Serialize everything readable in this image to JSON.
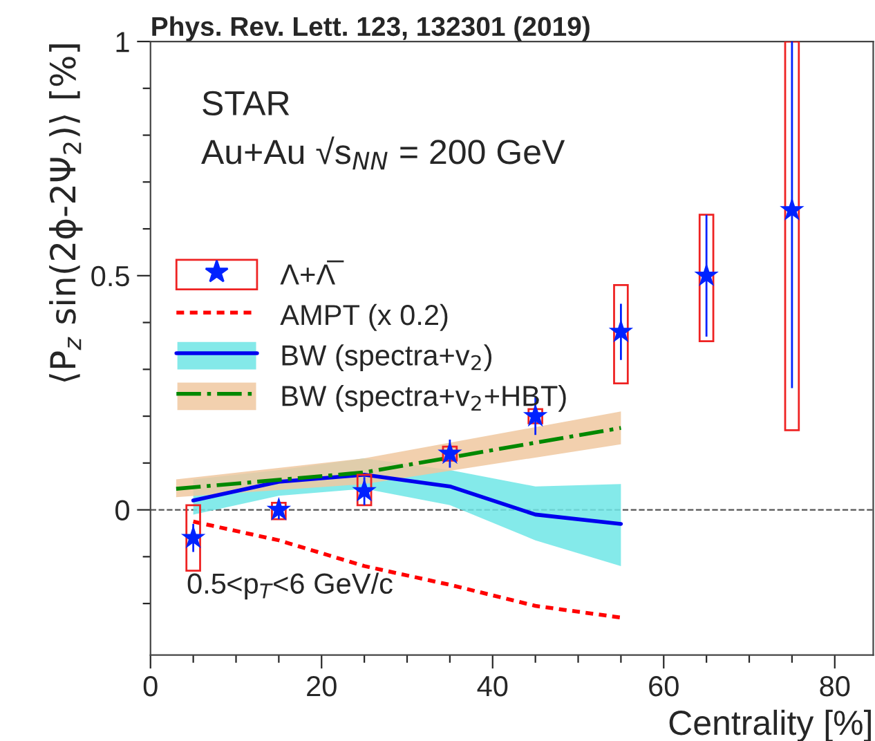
{
  "chart_data": {
    "type": "scatter",
    "title": "Phys. Rev. Lett. 123, 132301 (2019)",
    "xlabel": "Centrality [%]",
    "ylabel": "⟨P$_{z}$ sin(2ϕ-2Ψ$_{2}$)⟩ [%]",
    "annotations": [
      "STAR",
      "Au+Au √s$_{NN}$ = 200 GeV",
      "0.5<p$_{T}$<6 GeV/c"
    ],
    "xlim": [
      0,
      84.5
    ],
    "ylim": [
      -0.31,
      1
    ],
    "xticks": [
      0,
      {
        "value": 5,
        "label": null
      },
      {
        "value": 10,
        "label": null
      },
      {
        "value": 15,
        "label": null
      },
      20,
      {
        "value": 25,
        "label": null
      },
      {
        "value": 30,
        "label": null
      },
      {
        "value": 35,
        "label": null
      },
      40,
      {
        "value": 45,
        "label": null
      },
      {
        "value": 50,
        "label": null
      },
      {
        "value": 55,
        "label": null
      },
      60,
      {
        "value": 65,
        "label": null
      },
      {
        "value": 70,
        "label": null
      },
      {
        "value": 75,
        "label": null
      },
      80
    ],
    "yticks": [
      {
        "value": -0.2,
        "label": null
      },
      {
        "value": -0.1,
        "label": null
      },
      0,
      {
        "value": 0.1,
        "label": null
      },
      {
        "value": 0.2,
        "label": null
      },
      {
        "value": 0.3,
        "label": null
      },
      {
        "value": 0.4,
        "label": null
      },
      0.5,
      {
        "value": 0.6,
        "label": null
      },
      {
        "value": 0.7,
        "label": null
      },
      {
        "value": 0.8,
        "label": null
      },
      {
        "value": 0.9,
        "label": null
      },
      1
    ],
    "ref_lines": [
      {
        "axis": "y",
        "value": 0,
        "label": null,
        "color": "#555555",
        "line_style": "dashed"
      }
    ],
    "legend": "left",
    "grid": false,
    "series": [
      {
        "name": "Λ+Λ̅",
        "color": "#0022ff",
        "marker": "star",
        "x": [
          5,
          15,
          25,
          35,
          45,
          55,
          65,
          75
        ],
        "values": [
          -0.06,
          0.0,
          0.04,
          0.12,
          0.2,
          0.38,
          0.5,
          0.64
        ],
        "errors": [
          0.03,
          0.02,
          0.03,
          0.03,
          0.04,
          0.06,
          0.13,
          [
            0.26,
            1.0
          ]
        ]
      },
      {
        "type": "bar",
        "color": "#ee2222",
        "x": [
          5,
          15,
          25,
          35,
          45,
          55,
          65,
          75
        ],
        "base": [
          -0.13,
          -0.02,
          0.01,
          0.105,
          0.185,
          0.27,
          0.36,
          0.17
        ],
        "values": [
          0.14,
          0.035,
          0.065,
          0.03,
          0.03,
          0.21,
          0.27,
          0.83
        ]
      },
      {
        "type": "line",
        "name": "AMPT (x 0.2)",
        "color": "#ff0000",
        "line_style": "dotted",
        "x": [
          5,
          15,
          25,
          35,
          45,
          55
        ],
        "values": [
          -0.025,
          -0.065,
          -0.12,
          -0.16,
          -0.205,
          -0.23
        ]
      },
      {
        "type": "line",
        "name": "BW (spectra+v$_{2}$)",
        "color": "#0000ee",
        "line_style": "solid",
        "x": [
          5,
          15,
          25,
          35,
          45,
          55
        ],
        "values": [
          0.02,
          0.06,
          0.075,
          0.05,
          -0.01,
          -0.03
        ],
        "lower": [
          -0.01,
          0.03,
          0.045,
          0.01,
          -0.065,
          -0.12
        ],
        "upper": [
          0.065,
          0.085,
          0.11,
          0.085,
          0.05,
          0.055
        ]
      },
      {
        "type": "line",
        "name": "BW (spectra+v$_{2}$+HBT)",
        "color": "#008800",
        "line_style": "dashdot",
        "x": [
          3,
          25,
          55
        ],
        "values": [
          0.045,
          0.08,
          0.175
        ],
        "lower": [
          0.027,
          0.055,
          0.14
        ],
        "upper": [
          0.065,
          0.11,
          0.21
        ]
      }
    ]
  }
}
